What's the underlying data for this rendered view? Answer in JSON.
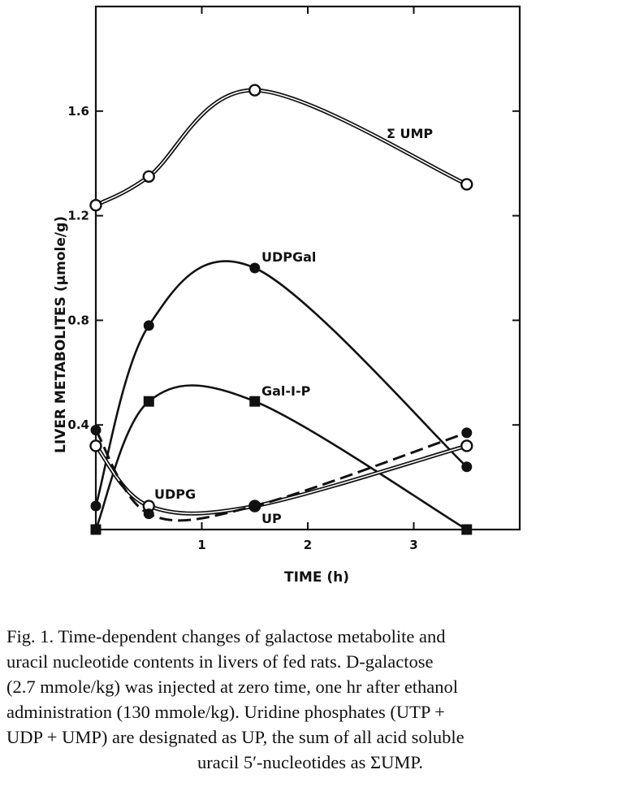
{
  "chart_data": {
    "type": "line",
    "xlabel": "TIME (h)",
    "ylabel": "LIVER METABOLITES (μmole/g)",
    "xlim": [
      0,
      4
    ],
    "ylim": [
      0,
      2.0
    ],
    "xticks": [
      1,
      2,
      3
    ],
    "yticks": [
      0.4,
      0.8,
      1.2,
      1.6
    ],
    "xtick_labels": [
      "1",
      "2",
      "3"
    ],
    "ytick_labels": [
      "0.4",
      "0.8",
      "1.2",
      "1.6"
    ],
    "grid": false,
    "series": [
      {
        "name": "Σ UMP",
        "marker": "open-circle",
        "line": "double",
        "x": [
          0,
          0.5,
          1.5,
          3.5
        ],
        "values": [
          1.24,
          1.35,
          1.68,
          1.32
        ]
      },
      {
        "name": "UDPGal",
        "marker": "filled-circle",
        "line": "solid",
        "x": [
          0,
          0.5,
          1.5,
          3.5
        ],
        "values": [
          0.09,
          0.78,
          1.0,
          0.24
        ]
      },
      {
        "name": "Gal-I-P",
        "marker": "filled-square",
        "line": "solid",
        "x": [
          0,
          0.5,
          1.5,
          3.5
        ],
        "values": [
          0.0,
          0.49,
          0.49,
          0.0
        ]
      },
      {
        "name": "UDPG",
        "marker": "open-circle",
        "line": "double",
        "x": [
          0,
          0.5,
          1.5,
          3.5
        ],
        "values": [
          0.32,
          0.09,
          0.09,
          0.32
        ]
      },
      {
        "name": "UP",
        "marker": "filled-circle",
        "line": "dashed",
        "x": [
          0,
          0.5,
          1.5,
          3.5
        ],
        "values": [
          0.38,
          0.06,
          0.09,
          0.37
        ]
      }
    ]
  },
  "caption": {
    "lines": [
      "Fig. 1. Time-dependent changes of galactose metabolite and",
      "uracil nucleotide contents in livers of fed rats. D-galactose",
      "(2.7 mmole/kg) was injected at zero time, one hr after ethanol",
      "administration (130 mmole/kg). Uridine phosphates (UTP +",
      "UDP + UMP) are designated as UP, the sum of all acid soluble",
      "uracil 5′-nucleotides as ΣUMP."
    ]
  }
}
